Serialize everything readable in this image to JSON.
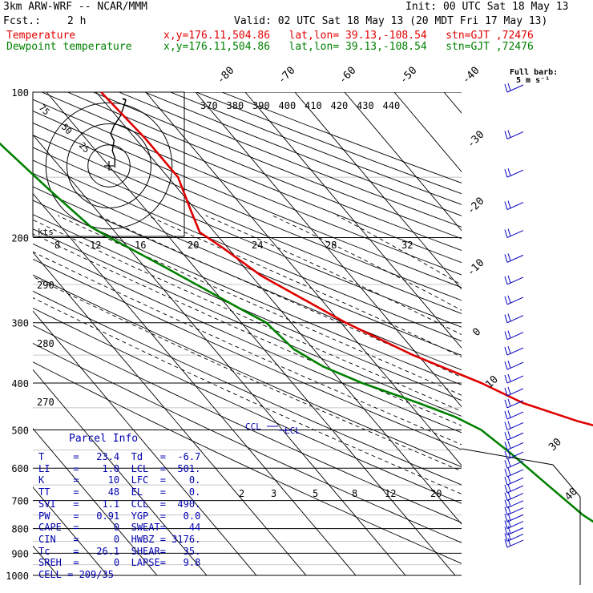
{
  "header": {
    "model": "3km ARW-WRF -- NCAR/MMM",
    "fcst_label": "Fcst.:",
    "fcst_value": "2 h",
    "init": "Init: 00 UTC Sat 18 May 13",
    "valid": "Valid: 02 UTC Sat 18 May 13 (20 MDT Fri 17 May 13)"
  },
  "legend": [
    {
      "name": "Temperature",
      "info": "x,y=176.11,504.86   lat,lon= 39.13,-108.54   stn=GJT ,72476",
      "color": "#e00000"
    },
    {
      "name": "Dewpoint temperature",
      "info": "x,y=176.11,504.86   lat,lon= 39.13,-108.54   stn=GJT ,72476",
      "color": "#008000"
    }
  ],
  "full_barb": {
    "line1": "Full barb:",
    "line2": "5 m s⁻¹"
  },
  "hodograph": {
    "rings": [
      "25",
      "50",
      "75"
    ],
    "unit": "kts",
    "path_kts": [
      [
        7,
        -2
      ],
      [
        7,
        10
      ],
      [
        4,
        18
      ],
      [
        6,
        30
      ],
      [
        2,
        38
      ],
      [
        6,
        48
      ],
      [
        14,
        60
      ],
      [
        18,
        72
      ],
      [
        20,
        78
      ],
      [
        16,
        80
      ],
      [
        20,
        79
      ]
    ]
  },
  "parcel_info": {
    "title": "Parcel Info",
    "rows": [
      [
        "T",
        "23.4",
        "Td",
        "-6.7"
      ],
      [
        "LI",
        "1.0",
        "LCL",
        "501."
      ],
      [
        "K",
        "10",
        "LFC",
        "0."
      ],
      [
        "TT",
        "48",
        "EL",
        "0."
      ],
      [
        "SVI",
        "1.1",
        "CCL",
        "490."
      ],
      [
        "PW",
        "0.91",
        "YGP",
        "0.0"
      ],
      [
        "CAPE",
        "0",
        "SWEAT",
        "44"
      ],
      [
        "CIN",
        "0",
        "HWBZ",
        "3176."
      ],
      [
        "Tc",
        "26.1",
        "SHEAR",
        "35."
      ],
      [
        "SREH",
        "0",
        "LAPSE",
        "9.8"
      ]
    ],
    "cell": "CELL = 209/35"
  },
  "level_labels": {
    "lcl": "LCL",
    "ccl": "CCL"
  },
  "chart_data": {
    "type": "line",
    "title": "",
    "xlabel": "",
    "ylabel": "",
    "pressure_levels": [
      100,
      200,
      300,
      400,
      500,
      600,
      700,
      800,
      900,
      1000
    ],
    "isotherm_labels": [
      "-80",
      "-70",
      "-60",
      "-50",
      "-40",
      "-30",
      "-20",
      "-10",
      "0",
      "10",
      "20",
      "30",
      "40"
    ],
    "theta_labels": [
      "370",
      "380",
      "390",
      "400",
      "410",
      "420",
      "430",
      "440"
    ],
    "theta_low_labels": [
      "290",
      "280",
      "270"
    ],
    "mixing_ratio_labels": [
      "8",
      "12",
      "16",
      "20",
      "24",
      "28",
      "32"
    ],
    "mixing_ratio_low_labels": [
      "2",
      "3",
      "5",
      "8",
      "12",
      "20"
    ],
    "series": [
      {
        "name": "Temperature",
        "color": "#e00000",
        "points": [
          [
            100,
            -49
          ],
          [
            125,
            -48
          ],
          [
            150,
            -48
          ],
          [
            175,
            -51
          ],
          [
            195,
            -53
          ],
          [
            210,
            -51
          ],
          [
            240,
            -48
          ],
          [
            300,
            -39
          ],
          [
            350,
            -31
          ],
          [
            400,
            -22
          ],
          [
            440,
            -17
          ],
          [
            480,
            -9
          ],
          [
            500,
            -4
          ],
          [
            520,
            -3
          ],
          [
            600,
            4
          ],
          [
            700,
            11
          ],
          [
            800,
            18
          ],
          [
            840,
            22
          ],
          [
            848,
            23.4
          ]
        ]
      },
      {
        "name": "Dewpoint temperature",
        "color": "#008000",
        "points": [
          [
            100,
            -80
          ],
          [
            130,
            -78
          ],
          [
            160,
            -76
          ],
          [
            190,
            -74
          ],
          [
            200,
            -72
          ],
          [
            230,
            -66
          ],
          [
            280,
            -58
          ],
          [
            300,
            -55
          ],
          [
            340,
            -54
          ],
          [
            370,
            -51
          ],
          [
            400,
            -46
          ],
          [
            440,
            -38
          ],
          [
            470,
            -33
          ],
          [
            500,
            -30
          ],
          [
            560,
            -28
          ],
          [
            650,
            -26
          ],
          [
            750,
            -24
          ],
          [
            830,
            -21
          ],
          [
            848,
            -6.7
          ]
        ]
      }
    ],
    "wind_barbs": {
      "levels": [
        100,
        125,
        150,
        175,
        200,
        225,
        250,
        275,
        300,
        325,
        350,
        375,
        400,
        425,
        450,
        475,
        500,
        525,
        550,
        575,
        600,
        625,
        650,
        675,
        700,
        725,
        750,
        775,
        800,
        825,
        850,
        875
      ],
      "unit": "m s-1"
    }
  }
}
